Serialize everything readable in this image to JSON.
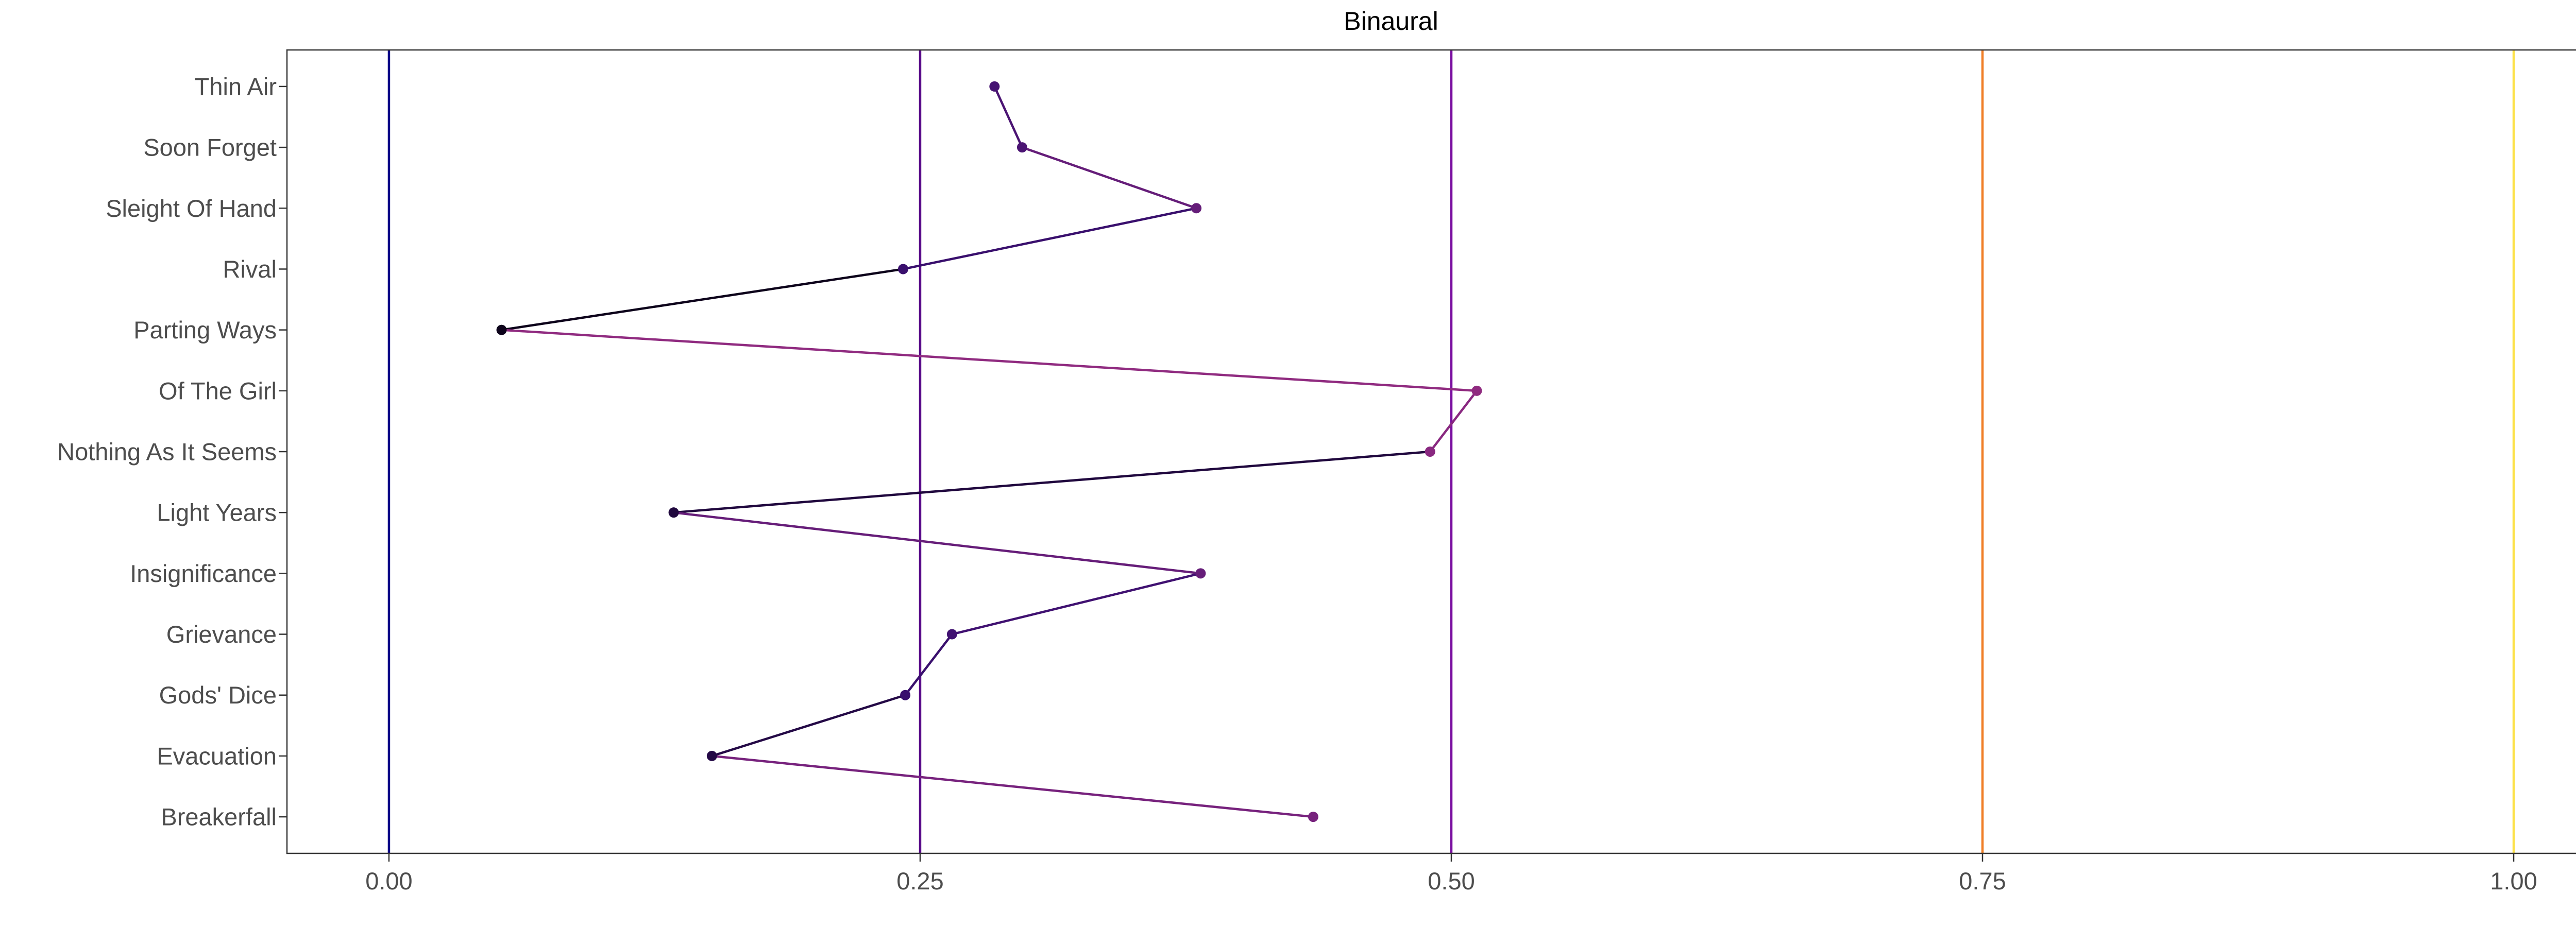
{
  "chart_data": {
    "type": "line",
    "title": "Binaural",
    "xlabel": "",
    "ylabel": "",
    "xlim": [
      -0.048,
      1.048
    ],
    "x_ticks": [
      "0.00",
      "0.25",
      "0.50",
      "0.75",
      "1.00"
    ],
    "x_tick_values": [
      0,
      0.25,
      0.5,
      0.75,
      1.0
    ],
    "categories": [
      "Thin Air",
      "Soon Forget",
      "Sleight Of Hand",
      "Rival",
      "Parting Ways",
      "Of The Girl",
      "Nothing As It Seems",
      "Light Years",
      "Insignificance",
      "Grievance",
      "Gods' Dice",
      "Evacuation",
      "Breakerfall"
    ],
    "values": [
      0.285,
      0.298,
      0.38,
      0.242,
      0.053,
      0.512,
      0.49,
      0.134,
      0.382,
      0.265,
      0.243,
      0.152,
      0.435
    ],
    "reference_lines": [
      {
        "x": 0.0,
        "color": "#0d0887"
      },
      {
        "x": 0.25,
        "color": "#5a0d8a"
      },
      {
        "x": 0.5,
        "color": "#7a0ea0"
      },
      {
        "x": 0.75,
        "color": "#f07f28"
      },
      {
        "x": 1.0,
        "color": "#fce14a"
      }
    ],
    "color_scale": "magma",
    "grid": false,
    "legend": "none"
  }
}
